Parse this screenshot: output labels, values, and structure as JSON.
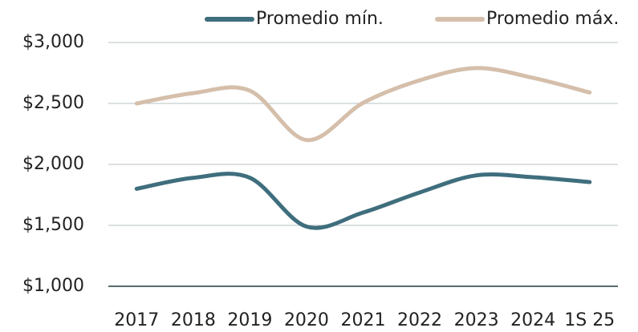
{
  "chart_data": {
    "type": "line",
    "categories": [
      "2017",
      "2018",
      "2019",
      "2020",
      "2021",
      "2022",
      "2023",
      "2024",
      "1S 25"
    ],
    "series": [
      {
        "name": "Promedio mín.",
        "color": "#3f6e7d",
        "values": [
          1800,
          1890,
          1890,
          1490,
          1605,
          1770,
          1910,
          1895,
          1855
        ]
      },
      {
        "name": "Promedio máx.",
        "color": "#d5bfab",
        "values": [
          2500,
          2585,
          2605,
          2200,
          2505,
          2690,
          2790,
          2710,
          2590
        ]
      }
    ],
    "ylim": [
      1000,
      3000
    ],
    "yticks": [
      {
        "value": 1000,
        "label": "$1,000"
      },
      {
        "value": 1500,
        "label": "$1,500"
      },
      {
        "value": 2000,
        "label": "$2,000"
      },
      {
        "value": 2500,
        "label": "$2,500"
      },
      {
        "value": 3000,
        "label": "$3,000"
      }
    ],
    "grid": true,
    "legend": "top"
  }
}
